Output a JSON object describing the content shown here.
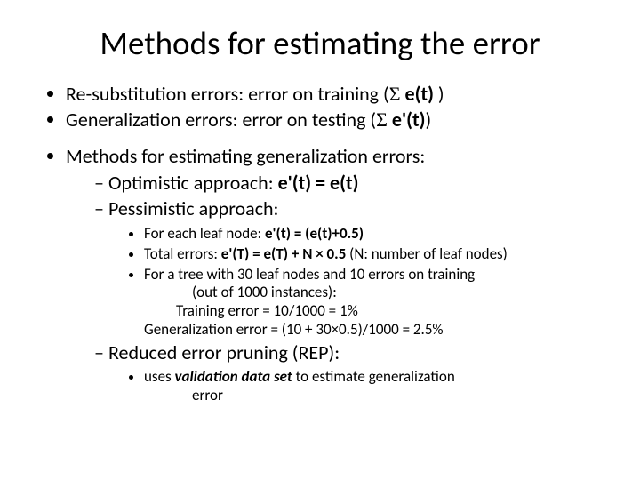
{
  "title": "Methods for estimating the error",
  "b1": {
    "prefix": "Re-substitution errors: error on training (",
    "sigma": "Σ",
    "expr": " e(t)",
    "suffix": " )"
  },
  "b2": {
    "prefix": "Generalization errors: error on testing (",
    "sigma": "Σ",
    "expr": " e'(t)",
    "suffix": ")"
  },
  "b3": "Methods for estimating generalization errors:",
  "d1": {
    "label": "Optimistic approach:  ",
    "eq": "e'(t) = e(t)"
  },
  "d2": "Pessimistic approach:",
  "p1": {
    "a": "For each leaf node: ",
    "eq": "e'(t) = (e(t)+0.5)"
  },
  "p2": {
    "a": "Total errors: ",
    "eq": "e'(T) = e(T) + N × 0.5",
    "b": " (N: number of leaf nodes)"
  },
  "p3a": "For a tree with 30 leaf nodes and 10 errors on training",
  "p3b": "(out of 1000 instances):",
  "p3c": "Training error = 10/1000 = 1%",
  "p3d": "Generalization error = (10 + 30×0.5)/1000 = 2.5%",
  "d3": "Reduced error pruning (REP):",
  "r1a": "uses ",
  "r1b": "validation data set",
  "r1c": " to estimate generalization",
  "r1d": "error",
  "colors": {
    "text": "#000000",
    "background": "#ffffff"
  },
  "fonts": {
    "title_size": 37,
    "body_size": 22,
    "sub_size": 17
  }
}
